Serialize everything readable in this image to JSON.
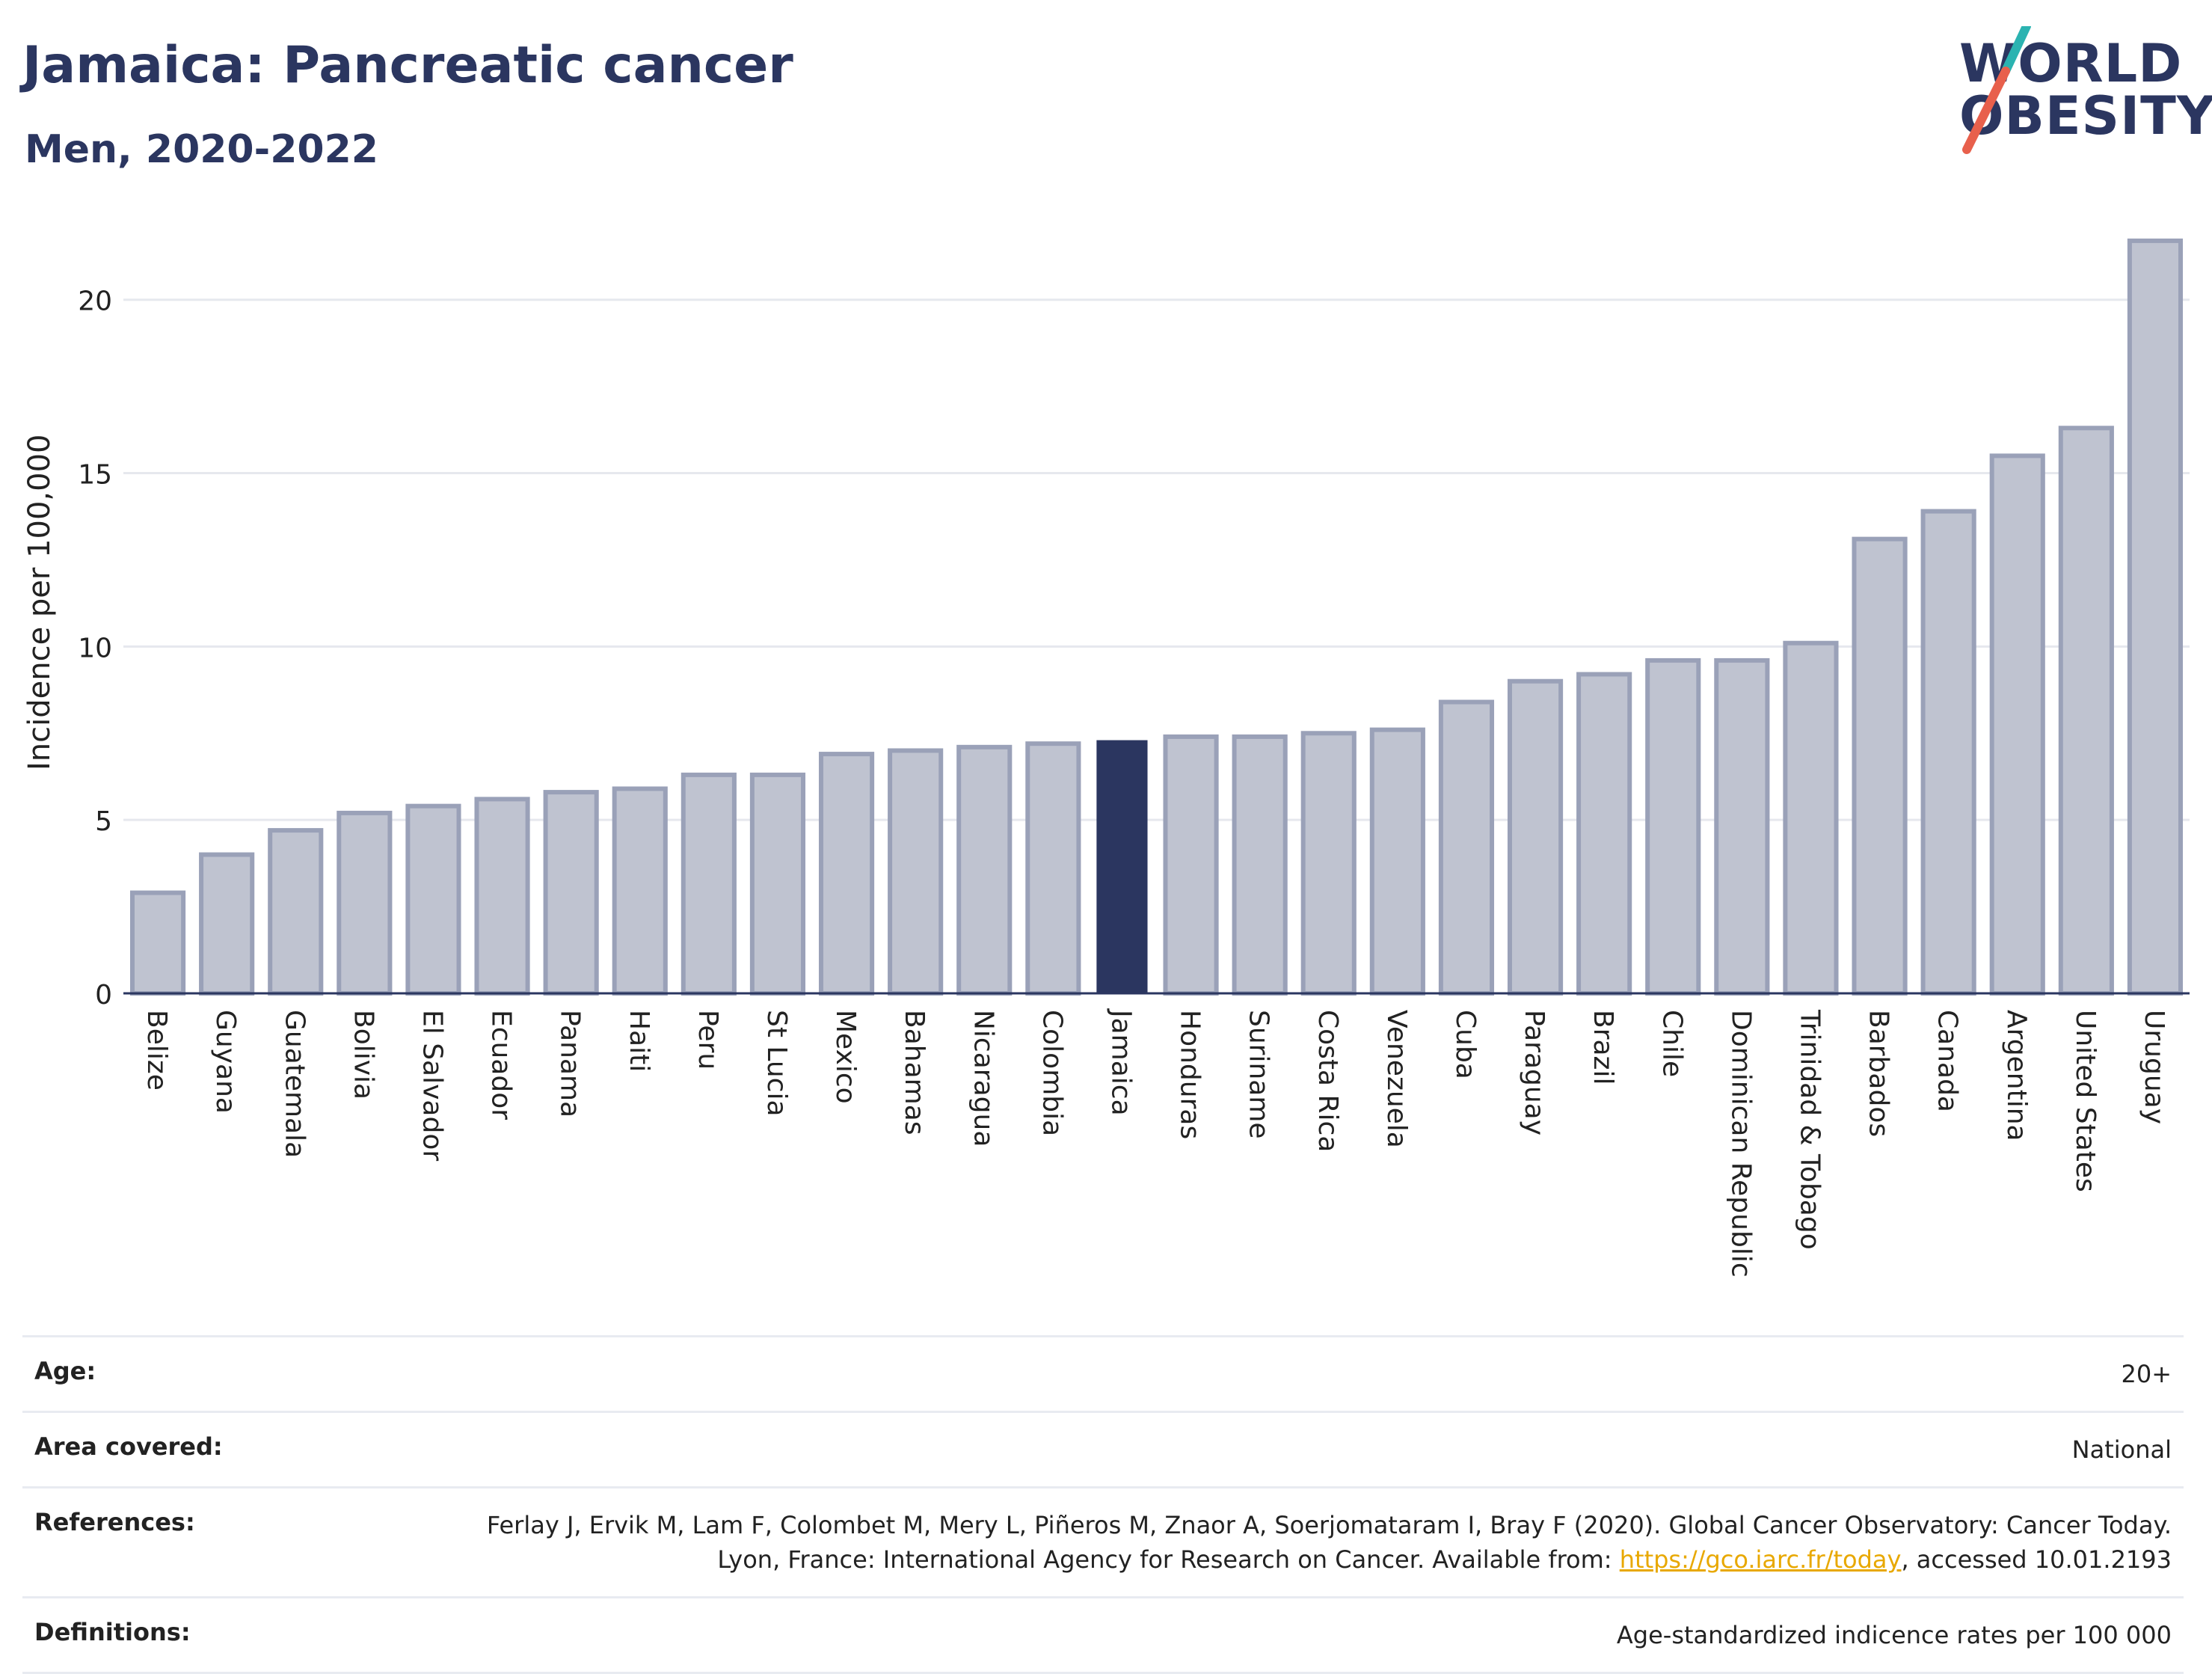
{
  "header": {
    "title": "Jamaica: Pancreatic cancer",
    "subtitle": "Men, 2020-2022"
  },
  "logo": {
    "line1": "WORLD",
    "line2": "OBESITY",
    "colors": {
      "text": "#2b3660",
      "slash_top": "#2bb3b1",
      "slash_bottom": "#e8604c"
    }
  },
  "colors": {
    "bar": "#bfc3d0",
    "bar_edge": "#9aa1b8",
    "highlight": "#2b3660",
    "grid": "#e6e8ee",
    "axis": "#2b3660"
  },
  "chart_data": {
    "type": "bar",
    "title": "Jamaica: Pancreatic cancer",
    "subtitle": "Men, 2020-2022",
    "xlabel": "",
    "ylabel": "Incidence per 100,000",
    "ylim": [
      0,
      22
    ],
    "yticks": [
      0,
      5,
      10,
      15,
      20
    ],
    "grid": true,
    "highlight": "Jamaica",
    "categories": [
      "Belize",
      "Guyana",
      "Guatemala",
      "Bolivia",
      "El Salvador",
      "Ecuador",
      "Panama",
      "Haiti",
      "Peru",
      "St Lucia",
      "Mexico",
      "Bahamas",
      "Nicaragua",
      "Colombia",
      "Jamaica",
      "Honduras",
      "Suriname",
      "Costa Rica",
      "Venezuela",
      "Cuba",
      "Paraguay",
      "Brazil",
      "Chile",
      "Dominican Republic",
      "Trinidad & Tobago",
      "Barbados",
      "Canada",
      "Argentina",
      "United States",
      "Uruguay"
    ],
    "values": [
      2.9,
      4.0,
      4.7,
      5.2,
      5.4,
      5.6,
      5.8,
      5.9,
      6.3,
      6.3,
      6.9,
      7.0,
      7.1,
      7.2,
      7.3,
      7.4,
      7.4,
      7.5,
      7.6,
      8.4,
      9.0,
      9.2,
      9.6,
      9.6,
      10.1,
      13.1,
      13.9,
      15.5,
      16.3,
      21.7
    ]
  },
  "meta": {
    "age_label": "Age:",
    "age_value": "20+",
    "area_label": "Area covered:",
    "area_value": "National",
    "references_label": "References:",
    "references_text_1": "Ferlay J, Ervik M, Lam F, Colombet M, Mery L, Piñeros M, Znaor A, Soerjomataram I, Bray F (2020). Global Cancer Observatory: Cancer Today. Lyon, France: International Agency for Research on Cancer. Available from: ",
    "references_link": "https://gco.iarc.fr/today",
    "references_text_2": ", accessed 10.01.2193",
    "definitions_label": "Definitions:",
    "definitions_value": "Age-standardized indicence rates per 100 000"
  }
}
